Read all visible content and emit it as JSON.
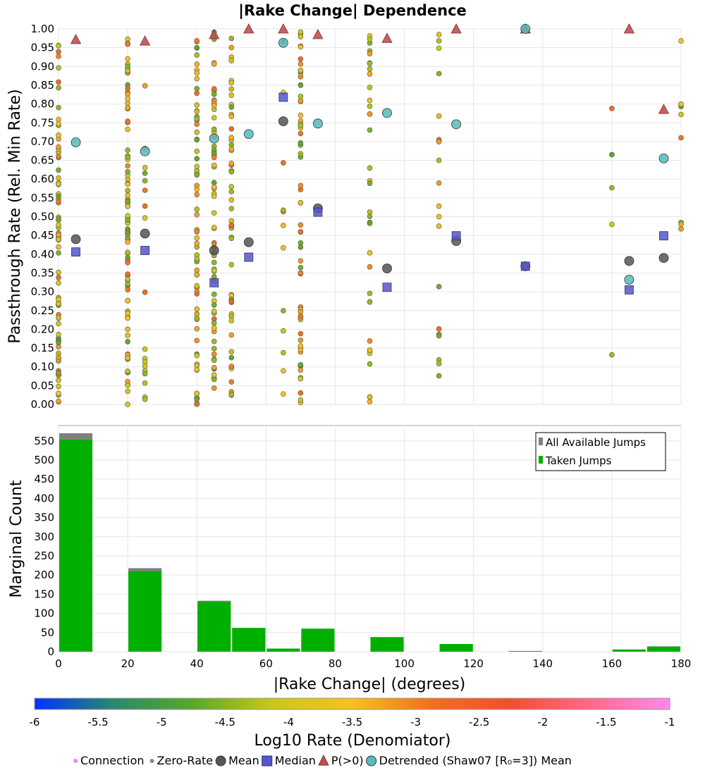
{
  "chart_data": [
    {
      "type": "scatter",
      "title": "|Rake Change| Dependence",
      "xlabel": "",
      "ylabel": "Passthrough Rate (Rel. Min Rate)",
      "xlim": [
        0,
        180
      ],
      "ylim": [
        0,
        1
      ],
      "yticks": [
        "0.00",
        "0.05",
        "0.10",
        "0.15",
        "0.20",
        "0.25",
        "0.30",
        "0.35",
        "0.40",
        "0.45",
        "0.50",
        "0.55",
        "0.60",
        "0.65",
        "0.70",
        "0.75",
        "0.80",
        "0.85",
        "0.90",
        "0.95",
        "1.00"
      ],
      "grid": true,
      "connection_columns": [
        {
          "x": 0,
          "note": "dense column of many points spanning 0–1"
        },
        {
          "x": 20,
          "note": "dense column spanning 0–1"
        },
        {
          "x": 25,
          "note": "sparse column"
        },
        {
          "x": 40,
          "note": "dense column spanning 0–1"
        },
        {
          "x": 45,
          "note": "dense column spanning 0–1"
        },
        {
          "x": 50,
          "note": "dense column spanning 0–1"
        },
        {
          "x": 65,
          "note": "sparse column"
        },
        {
          "x": 70,
          "note": "dense column spanning 0–1"
        },
        {
          "x": 90,
          "note": "medium column spanning 0–1"
        },
        {
          "x": 110,
          "note": "sparse column"
        },
        {
          "x": 160,
          "note": "few points"
        },
        {
          "x": 180,
          "note": "few points"
        }
      ],
      "series": [
        {
          "name": "Mean",
          "marker": "circle",
          "color": "#555555",
          "points": [
            [
              5,
              0.44
            ],
            [
              25,
              0.455
            ],
            [
              45,
              0.41
            ],
            [
              55,
              0.432
            ],
            [
              65,
              0.754
            ],
            [
              75,
              0.522
            ],
            [
              95,
              0.362
            ],
            [
              115,
              0.435
            ],
            [
              135,
              0.368
            ],
            [
              165,
              0.382
            ],
            [
              175,
              0.39
            ]
          ]
        },
        {
          "name": "Median",
          "marker": "square",
          "color": "#5555cc",
          "points": [
            [
              5,
              0.406
            ],
            [
              25,
              0.41
            ],
            [
              45,
              0.324
            ],
            [
              55,
              0.392
            ],
            [
              65,
              0.818
            ],
            [
              75,
              0.512
            ],
            [
              95,
              0.312
            ],
            [
              115,
              0.449
            ],
            [
              135,
              0.368
            ],
            [
              165,
              0.305
            ],
            [
              175,
              0.449
            ]
          ]
        },
        {
          "name": "P(>0)",
          "marker": "triangle",
          "color": "#c05050",
          "points": [
            [
              5,
              0.972
            ],
            [
              25,
              0.968
            ],
            [
              45,
              0.985
            ],
            [
              55,
              1.0
            ],
            [
              65,
              1.0
            ],
            [
              75,
              0.985
            ],
            [
              95,
              0.975
            ],
            [
              115,
              1.0
            ],
            [
              135,
              1.0
            ],
            [
              165,
              1.0
            ],
            [
              175,
              0.786
            ]
          ]
        },
        {
          "name": "Detrended (Shaw07 [R₀=3]) Mean",
          "marker": "circle",
          "color": "#55bbbb",
          "points": [
            [
              5,
              0.698
            ],
            [
              25,
              0.674
            ],
            [
              45,
              0.708
            ],
            [
              55,
              0.72
            ],
            [
              65,
              0.963
            ],
            [
              75,
              0.748
            ],
            [
              95,
              0.776
            ],
            [
              115,
              0.746
            ],
            [
              135,
              1.0
            ],
            [
              165,
              0.332
            ],
            [
              175,
              0.655
            ]
          ]
        }
      ]
    },
    {
      "type": "bar",
      "title": "",
      "xlabel": "|Rake Change| (degrees)",
      "ylabel": "Marginal Count",
      "xlim": [
        0,
        180
      ],
      "ylim": [
        0,
        590
      ],
      "xticks": [
        "0",
        "20",
        "40",
        "60",
        "80",
        "100",
        "120",
        "140",
        "160",
        "180"
      ],
      "yticks": [
        "0",
        "50",
        "100",
        "150",
        "200",
        "250",
        "300",
        "350",
        "400",
        "450",
        "500",
        "550"
      ],
      "grid": true,
      "legend_position": "top-right",
      "bin_width": 10,
      "categories": [
        5,
        15,
        25,
        35,
        45,
        55,
        65,
        75,
        85,
        95,
        105,
        115,
        125,
        135,
        145,
        155,
        165,
        175
      ],
      "series": [
        {
          "name": "All Available Jumps",
          "color": "#808080",
          "values": [
            570,
            0,
            218,
            0,
            133,
            62,
            8,
            60,
            0,
            38,
            0,
            20,
            0,
            2,
            0,
            0,
            6,
            14
          ]
        },
        {
          "name": "Taken Jumps",
          "color": "#00b000",
          "values": [
            553,
            0,
            210,
            0,
            130,
            62,
            8,
            60,
            0,
            38,
            0,
            20,
            0,
            1,
            0,
            0,
            5,
            13
          ]
        }
      ]
    },
    {
      "type": "colorbar",
      "label": "Log10 Rate (Denomiator)",
      "range": [
        -6,
        -1
      ],
      "ticks": [
        "-6",
        "-5.5",
        "-5",
        "-4.5",
        "-4",
        "-3.5",
        "-3",
        "-2.5",
        "-2",
        "-1.5",
        "-1"
      ],
      "colors": [
        "#0033ff",
        "#2a8a6a",
        "#5aa82a",
        "#c8c81a",
        "#f8c020",
        "#f07020",
        "#f05030",
        "#ff6a8a",
        "#ff88ee"
      ]
    }
  ],
  "legend": [
    {
      "label": "Connection",
      "marker": "dot",
      "color": "#ee88ee"
    },
    {
      "label": "Zero-Rate",
      "marker": "dot",
      "color": "#888888"
    },
    {
      "label": "Mean",
      "marker": "circle",
      "color": "#555555"
    },
    {
      "label": "Median",
      "marker": "square",
      "color": "#5555cc"
    },
    {
      "label": "P(>0)",
      "marker": "triangle",
      "color": "#c05050"
    },
    {
      "label": "Detrended (Shaw07 [R₀=3]) Mean",
      "marker": "circle",
      "color": "#55bbbb"
    }
  ]
}
